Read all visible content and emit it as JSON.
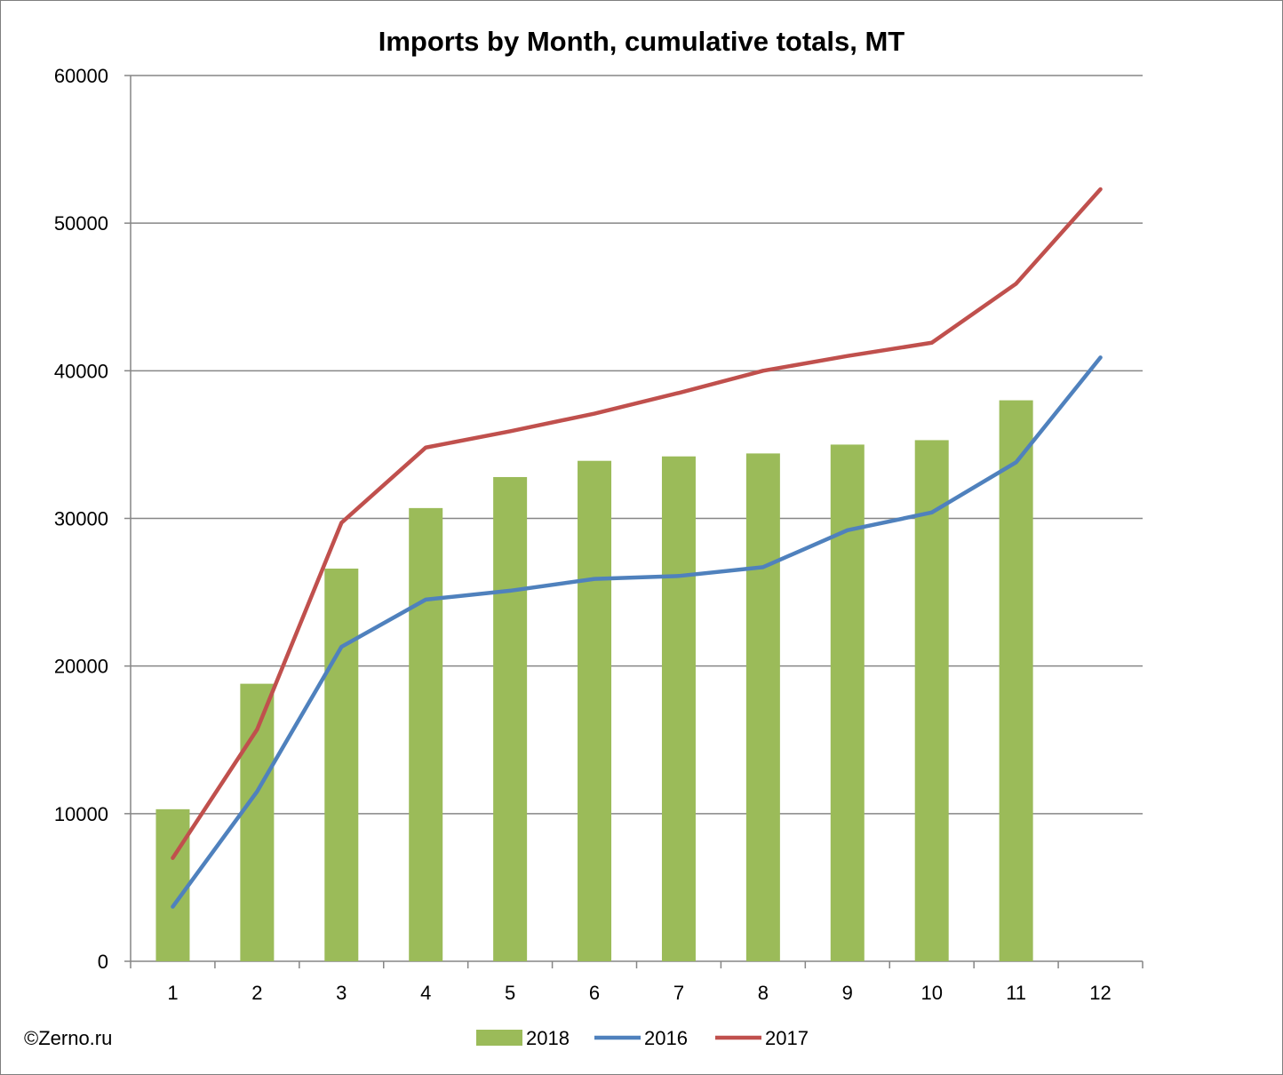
{
  "credit": "©Zerno.ru",
  "chart_data": {
    "type": "bar",
    "title": "Imports by Month, cumulative totals, MT",
    "categories": [
      "1",
      "2",
      "3",
      "4",
      "5",
      "6",
      "7",
      "8",
      "9",
      "10",
      "11",
      "12"
    ],
    "ylim": [
      0,
      60000
    ],
    "yticks": [
      "0",
      "10000",
      "20000",
      "30000",
      "40000",
      "50000",
      "60000"
    ],
    "grid": true,
    "legend_position": "bottom",
    "series": [
      {
        "name": "2018",
        "type": "bar",
        "color": "#9bbb59",
        "values": [
          10300,
          18800,
          26600,
          30700,
          32800,
          33900,
          34200,
          34400,
          35000,
          35300,
          38000,
          null
        ]
      },
      {
        "name": "2016",
        "type": "line",
        "color": "#4f81bd",
        "values": [
          3700,
          11500,
          21300,
          24500,
          25100,
          25900,
          26100,
          26700,
          29200,
          30400,
          33800,
          40900
        ]
      },
      {
        "name": "2017",
        "type": "line",
        "color": "#c0504d",
        "values": [
          7000,
          15700,
          29700,
          34800,
          35900,
          37100,
          38500,
          40000,
          41000,
          41900,
          45900,
          52300
        ]
      }
    ]
  }
}
